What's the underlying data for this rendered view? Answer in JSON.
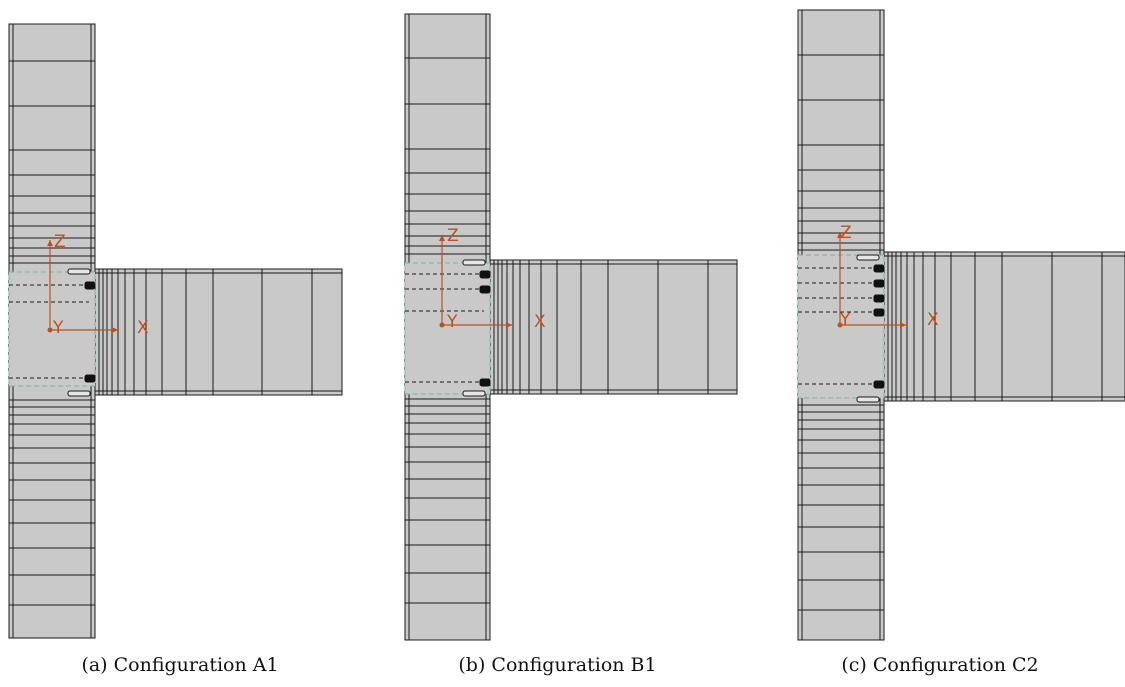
{
  "figures": [
    {
      "id": "A1",
      "caption": "(a) Configuration A1",
      "bolt_rows": 3,
      "axes": {
        "z": "Z",
        "y": "Y",
        "x": "X"
      }
    },
    {
      "id": "B1",
      "caption": "(b) Configuration B1",
      "bolt_rows": 4,
      "axes": {
        "z": "Z",
        "y": "Y",
        "x": "X"
      }
    },
    {
      "id": "C2",
      "caption": "(c) Configuration C2",
      "bolt_rows": 5,
      "axes": {
        "z": "Z",
        "y": "Y",
        "x": "X"
      }
    }
  ],
  "colors": {
    "steel_fill": "#c9c9c9",
    "outline": "#1a1a1a",
    "axis": "#c0501a",
    "bolt": "#111111",
    "panel_zone_border": "#6fb6a8"
  }
}
